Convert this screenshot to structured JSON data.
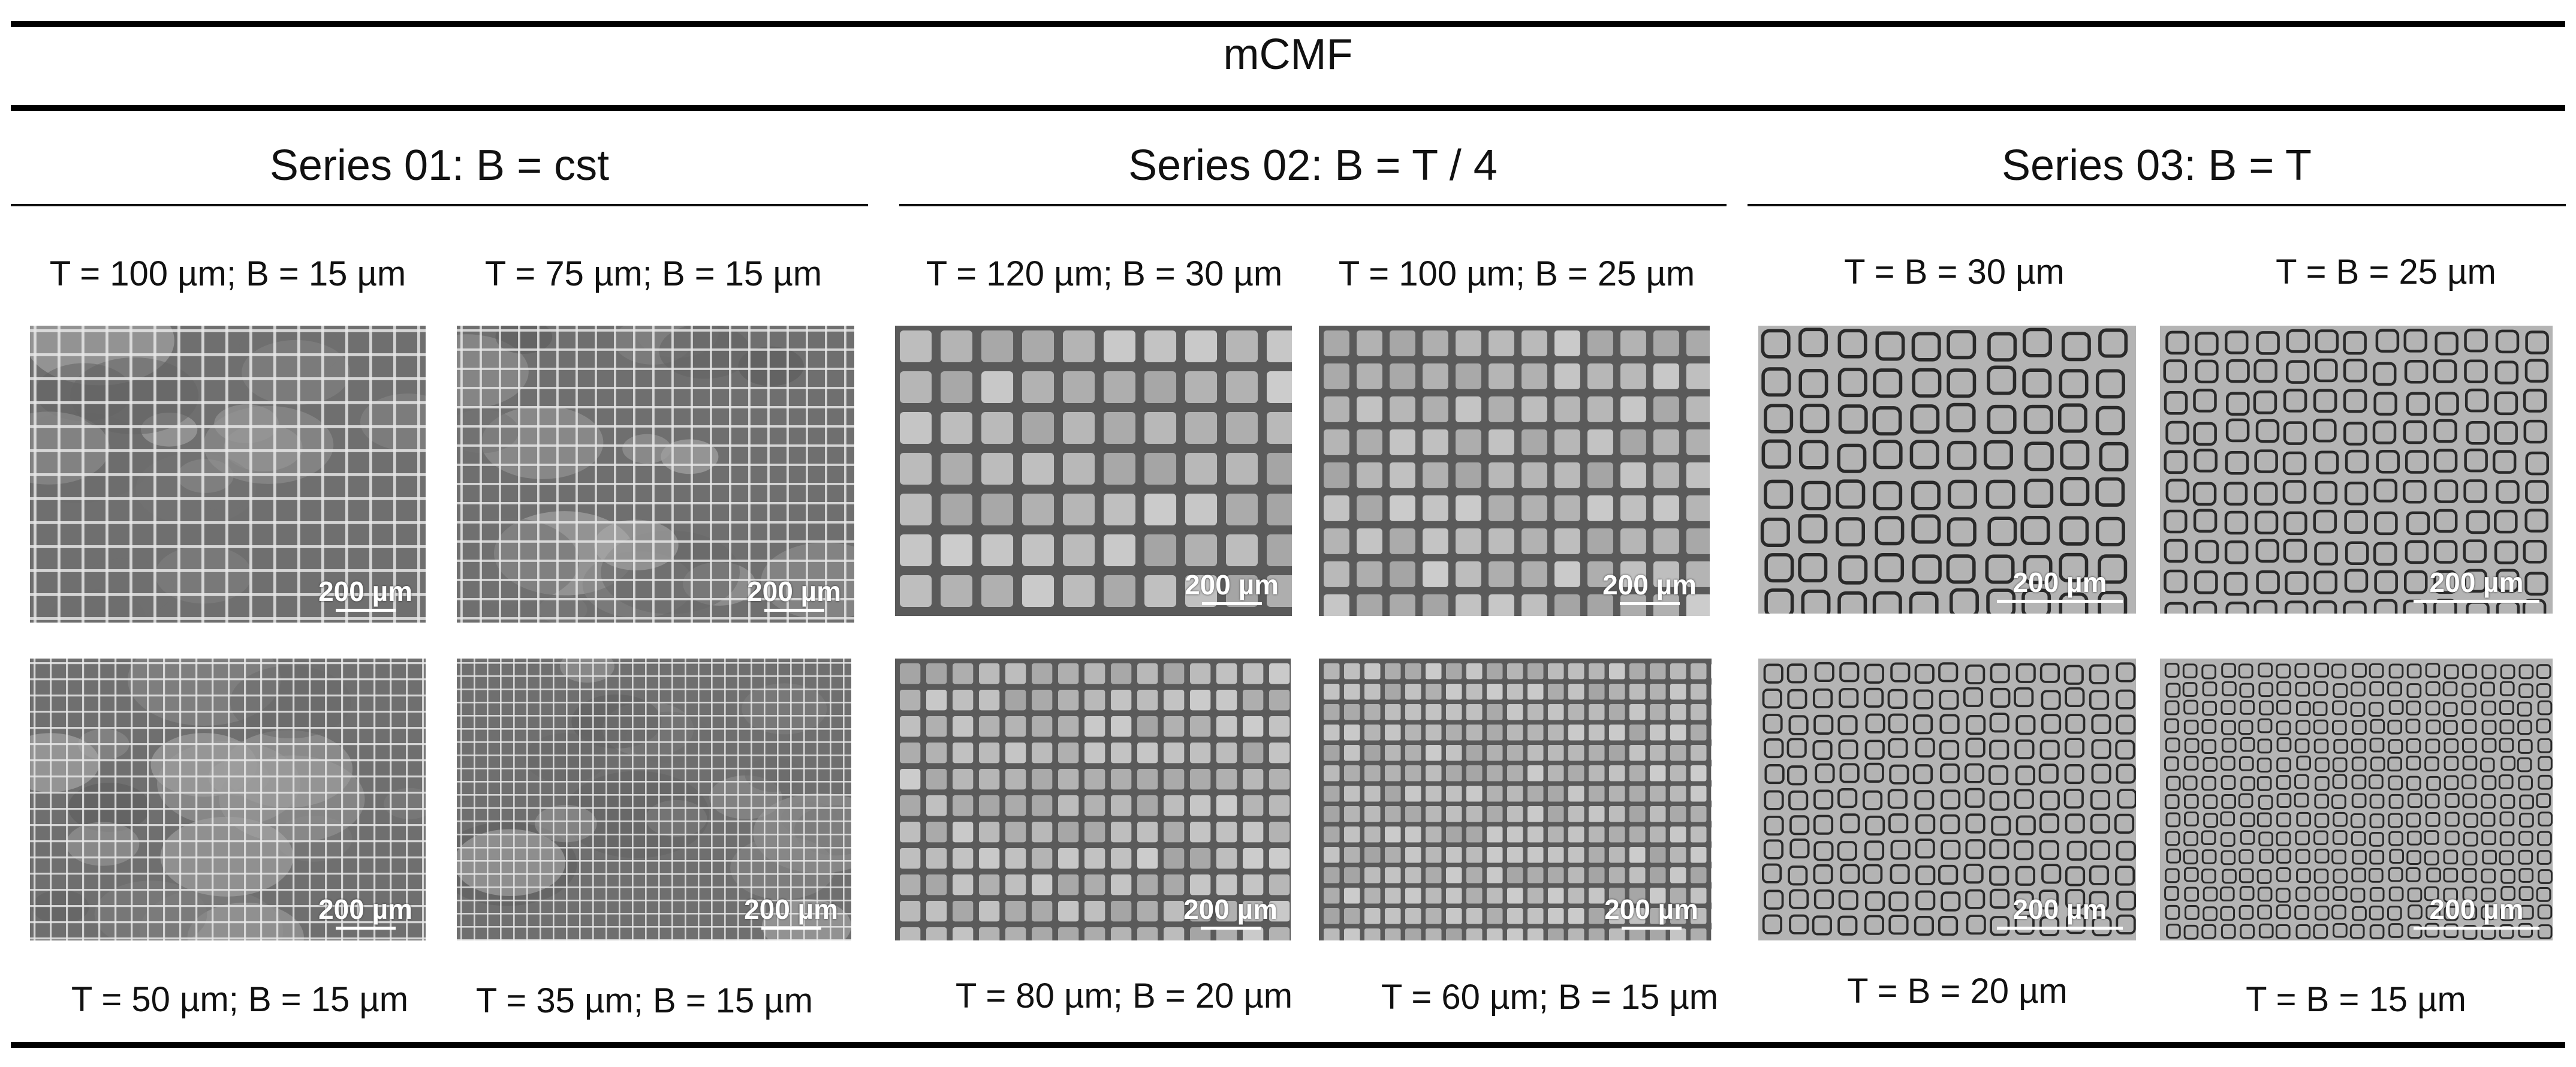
{
  "figure": {
    "title": "mCMF",
    "scale_label": "200 µm",
    "series": [
      {
        "title": "Series 01: B = cst",
        "captions": [
          "T = 100 µm; B = 15 µm",
          "T = 75 µm; B = 15 µm",
          "T = 50 µm; B = 15 µm",
          "T = 35 µm; B = 15 µm"
        ]
      },
      {
        "title": "Series 02: B = T / 4",
        "captions": [
          "T = 120 µm; B = 30 µm",
          "T = 100 µm; B = 25 µm",
          "T = 80 µm; B = 20 µm",
          "T = 60 µm; B = 15 µm"
        ]
      },
      {
        "title": "Series 03: B = T",
        "captions": [
          "T = B = 30 µm",
          "T = B = 25 µm",
          "T = B = 20 µm",
          "T = B = 15 µm"
        ]
      }
    ],
    "colors": {
      "series01_background": "#6f6f6f",
      "series01_grid": "#e6e6e6",
      "series02_background": "#5a5a5a",
      "series02_cell": "#b8b8b8",
      "series03_background": "#b4b4b4",
      "series03_cell_outline": "#2a2a2a"
    }
  }
}
